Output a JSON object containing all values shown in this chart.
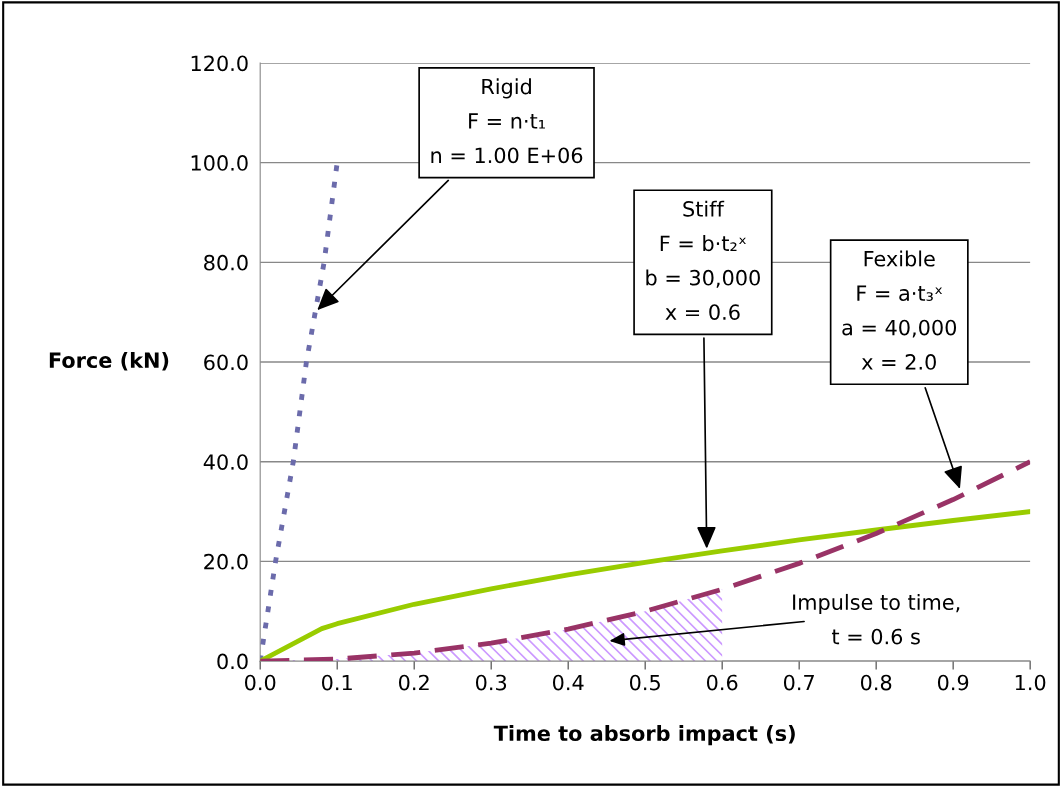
{
  "chart_data": {
    "type": "line",
    "xlabel": "Time to absorb impact (s)",
    "ylabel": "Force (kN)",
    "xlim": [
      0,
      1.0
    ],
    "ylim": [
      0,
      120
    ],
    "xticks": [
      {
        "value": 0,
        "label": "0.0"
      },
      {
        "value": 0.1,
        "label": "0.1"
      },
      {
        "value": 0.2,
        "label": "0.2"
      },
      {
        "value": 0.3,
        "label": "0.3"
      },
      {
        "value": 0.4,
        "label": "0.4"
      },
      {
        "value": 0.5,
        "label": "0.5"
      },
      {
        "value": 0.6,
        "label": "0.6"
      },
      {
        "value": 0.7,
        "label": "0.7"
      },
      {
        "value": 0.8,
        "label": "0.8"
      },
      {
        "value": 0.9,
        "label": "0.9"
      },
      {
        "value": 1.0,
        "label": "1.0"
      }
    ],
    "yticks": [
      {
        "value": 0,
        "label": "0.0"
      },
      {
        "value": 20,
        "label": "20.0"
      },
      {
        "value": 40,
        "label": "40.0"
      },
      {
        "value": 60,
        "label": "60.0"
      },
      {
        "value": 80,
        "label": "80.0"
      },
      {
        "value": 100,
        "label": "100.0"
      },
      {
        "value": 120,
        "label": "120.0"
      }
    ],
    "grid": "y",
    "legend": false,
    "series": [
      {
        "type": "area",
        "color": "#cc99ff",
        "x": [
          0,
          0.1,
          0.2,
          0.3,
          0.4,
          0.5,
          0.6
        ],
        "values": [
          0,
          0.4,
          1.6,
          3.6,
          6.4,
          10,
          14.4
        ]
      },
      {
        "color": "#6b6bab",
        "line_style": "dotted",
        "x": [
          0,
          0.02,
          0.043,
          0.06,
          0.083,
          0.1
        ],
        "values": [
          0,
          20,
          40,
          60,
          80,
          100
        ]
      },
      {
        "color": "#99cc00",
        "line_style": "solid",
        "x": [
          0,
          0.08,
          0.1,
          0.2,
          0.3,
          0.4,
          0.5,
          0.6,
          0.7,
          0.8,
          0.9,
          1.0
        ],
        "values": [
          0,
          6.5,
          7.5,
          11.4,
          14.5,
          17.3,
          19.8,
          22.1,
          24.3,
          26.3,
          28.2,
          30
        ]
      },
      {
        "color": "#993366",
        "line_style": "dashed",
        "x": [
          0,
          0.1,
          0.2,
          0.3,
          0.4,
          0.5,
          0.6,
          0.7,
          0.8,
          0.9,
          1.0
        ],
        "values": [
          0,
          0.4,
          1.6,
          3.6,
          6.4,
          10,
          14.4,
          19.6,
          25.6,
          32.4,
          40
        ]
      }
    ],
    "annotations": [
      {
        "text": "Rigid\nF = n·t₁\nn = 1.00 E+06",
        "x": 0.0715,
        "y": 70
      },
      {
        "text": "Stiff\nF = b·t₂ˣ\nb = 30,000\nx = 0.6",
        "x": 0.58,
        "y": 22
      },
      {
        "text": "Fexible\nF = a·t₃ˣ\na = 40,000\nx = 2.0",
        "x": 0.91,
        "y": 34
      },
      "Impulse to time,\nt = 0.6 s"
    ]
  }
}
